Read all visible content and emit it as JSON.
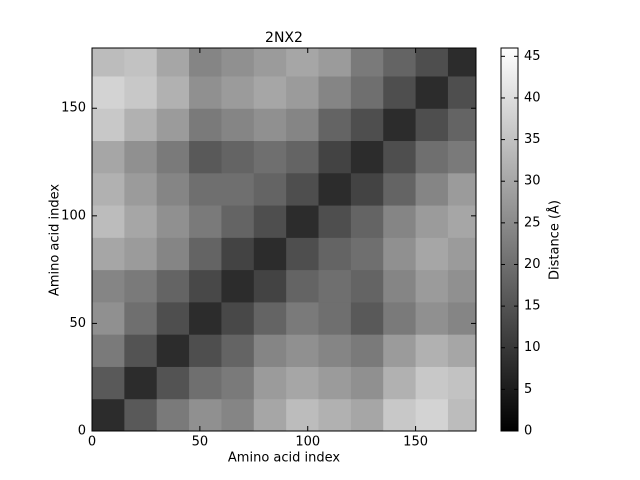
{
  "chart_data": {
    "type": "heatmap",
    "title": "2NX2",
    "xlabel": "Amino acid index",
    "ylabel": "Amino acid index",
    "colorbar_label": "Distance (Å)",
    "xbins": [
      0,
      15,
      30,
      45,
      60,
      75,
      90,
      105,
      120,
      135,
      150,
      165,
      178
    ],
    "ybins": [
      0,
      15,
      30,
      45,
      60,
      75,
      90,
      105,
      120,
      135,
      150,
      165,
      178
    ],
    "z": [
      [
        8,
        16,
        22,
        26,
        24,
        30,
        34,
        32,
        30,
        36,
        38,
        34
      ],
      [
        16,
        8,
        15,
        20,
        22,
        28,
        30,
        28,
        26,
        32,
        36,
        35
      ],
      [
        22,
        15,
        8,
        14,
        18,
        24,
        26,
        24,
        22,
        28,
        32,
        30
      ],
      [
        26,
        20,
        14,
        8,
        13,
        18,
        22,
        20,
        16,
        22,
        26,
        24
      ],
      [
        24,
        22,
        18,
        13,
        8,
        12,
        18,
        20,
        18,
        24,
        28,
        26
      ],
      [
        30,
        28,
        24,
        18,
        12,
        8,
        14,
        18,
        20,
        26,
        30,
        28
      ],
      [
        34,
        30,
        26,
        22,
        18,
        14,
        8,
        14,
        18,
        24,
        28,
        30
      ],
      [
        32,
        28,
        24,
        20,
        20,
        18,
        14,
        8,
        12,
        18,
        24,
        28
      ],
      [
        30,
        26,
        22,
        16,
        18,
        20,
        18,
        12,
        8,
        14,
        20,
        22
      ],
      [
        36,
        32,
        28,
        22,
        24,
        26,
        24,
        18,
        14,
        8,
        14,
        18
      ],
      [
        38,
        36,
        32,
        26,
        28,
        30,
        28,
        24,
        20,
        14,
        8,
        14
      ],
      [
        34,
        35,
        30,
        24,
        26,
        28,
        30,
        28,
        22,
        18,
        14,
        8
      ]
    ],
    "xlim": [
      0,
      178
    ],
    "ylim": [
      0,
      178
    ],
    "xticks": [
      0,
      50,
      100,
      150
    ],
    "yticks": [
      0,
      50,
      100,
      150
    ],
    "clim": [
      0,
      46
    ],
    "cticks": [
      0,
      5,
      10,
      15,
      20,
      25,
      30,
      35,
      40,
      45
    ]
  }
}
